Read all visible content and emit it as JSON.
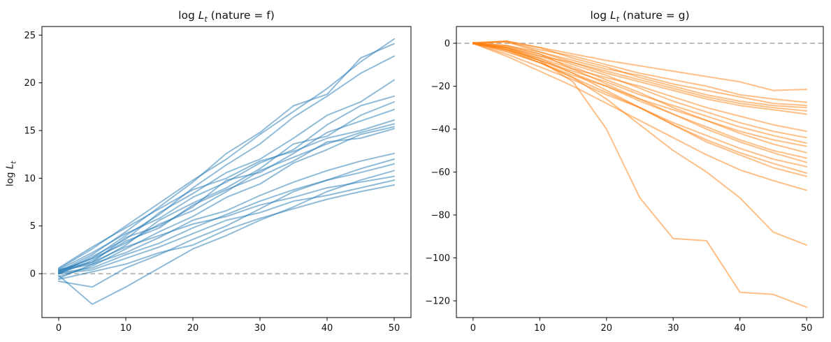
{
  "figure": {
    "background": "#ffffff",
    "axis_color": "#000000",
    "tick_label_color": "#111111",
    "zero_line_color": "#bdbdbd"
  },
  "chart_data": [
    {
      "type": "line",
      "title": "log L_t (nature = f)",
      "title_parts": {
        "pre": "log ",
        "var": "L",
        "sub": "t",
        "post": " (nature = f)"
      },
      "ylabel": "log L_t",
      "ylabel_parts": {
        "pre": "log ",
        "var": "L",
        "sub": "t"
      },
      "color": "#1f77b4",
      "opacity": 0.5,
      "line_width": 2,
      "grid": false,
      "legend": "none",
      "x_step": 5,
      "xlim": [
        -2.5,
        52.5
      ],
      "ylim": [
        -4.6,
        25.9
      ],
      "xticks": [
        {
          "v": 0,
          "label": "0"
        },
        {
          "v": 10,
          "label": "10"
        },
        {
          "v": 20,
          "label": "20"
        },
        {
          "v": 30,
          "label": "30"
        },
        {
          "v": 40,
          "label": "40"
        },
        {
          "v": 50,
          "label": "50"
        }
      ],
      "yticks": [
        {
          "v": 0,
          "label": "0"
        },
        {
          "v": 5,
          "label": "5"
        },
        {
          "v": 10,
          "label": "10"
        },
        {
          "v": 15,
          "label": "15"
        },
        {
          "v": 20,
          "label": "20"
        },
        {
          "v": 25,
          "label": "25"
        }
      ],
      "zero_line": {
        "y": 0,
        "style": "dashed"
      },
      "series": [
        [
          0.5,
          2.6,
          5.0,
          7.4,
          9.8,
          12.0,
          14.6,
          17.0,
          19.4,
          22.2,
          24.6
        ],
        [
          0.2,
          2.0,
          4.4,
          7.0,
          9.6,
          12.6,
          14.8,
          17.6,
          18.8,
          22.6,
          24.1
        ],
        [
          0.3,
          1.6,
          4.0,
          6.2,
          9.0,
          11.4,
          13.6,
          16.4,
          18.6,
          21.0,
          22.8
        ],
        [
          0.0,
          1.8,
          3.6,
          6.4,
          8.4,
          10.6,
          12.0,
          14.2,
          16.6,
          18.0,
          20.3
        ],
        [
          0.4,
          2.2,
          4.2,
          5.8,
          8.0,
          9.6,
          11.6,
          13.0,
          15.6,
          17.6,
          18.6
        ],
        [
          -0.5,
          1.0,
          3.0,
          5.6,
          7.4,
          9.0,
          11.0,
          13.6,
          14.4,
          16.6,
          18.0
        ],
        [
          0.1,
          1.2,
          3.8,
          5.0,
          7.0,
          9.8,
          10.6,
          12.6,
          14.8,
          16.0,
          17.2
        ],
        [
          0.6,
          2.8,
          4.8,
          6.8,
          8.8,
          10.0,
          11.8,
          12.8,
          14.2,
          15.0,
          16.1
        ],
        [
          0.2,
          1.6,
          3.2,
          5.2,
          6.6,
          8.6,
          10.8,
          12.2,
          13.6,
          14.8,
          15.7
        ],
        [
          -0.3,
          0.8,
          2.6,
          4.4,
          6.0,
          8.0,
          9.4,
          11.6,
          13.0,
          14.6,
          15.4
        ],
        [
          0.0,
          1.4,
          3.4,
          4.8,
          7.2,
          8.8,
          10.2,
          11.8,
          13.8,
          14.2,
          15.2
        ],
        [
          0.3,
          1.0,
          2.2,
          3.8,
          5.6,
          6.6,
          8.2,
          9.6,
          10.8,
          11.8,
          12.6
        ],
        [
          -0.8,
          -1.4,
          0.6,
          2.0,
          3.6,
          5.0,
          6.8,
          8.6,
          9.8,
          11.0,
          12.0
        ],
        [
          0.1,
          0.6,
          2.0,
          3.2,
          4.8,
          6.2,
          7.6,
          8.8,
          9.8,
          10.6,
          11.5
        ],
        [
          -0.2,
          -3.2,
          -1.4,
          0.6,
          2.6,
          4.0,
          5.6,
          7.0,
          8.6,
          9.8,
          10.8
        ],
        [
          0.4,
          1.2,
          2.8,
          4.0,
          5.2,
          6.0,
          7.2,
          8.0,
          9.0,
          9.6,
          10.2
        ],
        [
          0.0,
          0.4,
          1.6,
          2.8,
          4.2,
          5.6,
          6.4,
          7.6,
          8.2,
          9.0,
          9.8
        ],
        [
          -0.6,
          0.2,
          1.0,
          2.2,
          3.0,
          4.6,
          5.8,
          6.8,
          7.8,
          8.6,
          9.3
        ]
      ]
    },
    {
      "type": "line",
      "title": "log L_t (nature = g)",
      "title_parts": {
        "pre": "log ",
        "var": "L",
        "sub": "t",
        "post": " (nature = g)"
      },
      "ylabel": "",
      "color": "#ff7f0e",
      "opacity": 0.5,
      "line_width": 2,
      "grid": false,
      "legend": "none",
      "x_step": 5,
      "xlim": [
        -2.5,
        52.5
      ],
      "ylim": [
        -127.8,
        7.8
      ],
      "xticks": [
        {
          "v": 0,
          "label": "0"
        },
        {
          "v": 10,
          "label": "10"
        },
        {
          "v": 20,
          "label": "20"
        },
        {
          "v": 30,
          "label": "30"
        },
        {
          "v": 40,
          "label": "40"
        },
        {
          "v": 50,
          "label": "50"
        }
      ],
      "yticks": [
        {
          "v": 0,
          "label": "0"
        },
        {
          "v": -20,
          "label": "−20"
        },
        {
          "v": -40,
          "label": "−40"
        },
        {
          "v": -60,
          "label": "−60"
        },
        {
          "v": -80,
          "label": "−80"
        },
        {
          "v": -100,
          "label": "−100"
        },
        {
          "v": -120,
          "label": "−120"
        }
      ],
      "zero_line": {
        "y": 0,
        "style": "dashed"
      },
      "series": [
        [
          0.2,
          1.0,
          -2.0,
          -5.0,
          -8.0,
          -10.5,
          -13.0,
          -15.5,
          -18.0,
          -22.0,
          -21.5
        ],
        [
          0.0,
          0.5,
          -3.0,
          -6.0,
          -10.0,
          -14.0,
          -17.0,
          -20.0,
          -24.0,
          -26.0,
          -27.5
        ],
        [
          0.1,
          -1.0,
          -4.0,
          -8.0,
          -12.0,
          -15.0,
          -19.0,
          -22.0,
          -25.0,
          -28.0,
          -29.0
        ],
        [
          -0.2,
          1.0,
          -2.0,
          -7.0,
          -11.0,
          -16.0,
          -20.0,
          -24.0,
          -27.0,
          -29.0,
          -30.0
        ],
        [
          0.0,
          -2.0,
          -6.0,
          -9.0,
          -13.0,
          -17.0,
          -21.0,
          -25.0,
          -28.0,
          -30.0,
          -31.5
        ],
        [
          0.3,
          0.8,
          -4.0,
          -9.0,
          -14.0,
          -18.0,
          -22.0,
          -26.0,
          -29.0,
          -31.0,
          -33.0
        ],
        [
          0.0,
          -3.0,
          -7.0,
          -12.0,
          -16.0,
          -20.0,
          -25.0,
          -30.0,
          -34.0,
          -38.0,
          -41.0
        ],
        [
          -0.1,
          -1.5,
          -5.0,
          -10.0,
          -15.0,
          -21.0,
          -27.0,
          -32.0,
          -37.0,
          -41.0,
          -44.0
        ],
        [
          0.2,
          -2.5,
          -8.0,
          -13.0,
          -18.0,
          -24.0,
          -29.0,
          -34.0,
          -39.0,
          -43.0,
          -46.5
        ],
        [
          0.0,
          -4.0,
          -9.0,
          -15.0,
          -20.0,
          -26.0,
          -31.0,
          -36.0,
          -41.0,
          -45.0,
          -48.0
        ],
        [
          -0.3,
          -2.0,
          -6.0,
          -11.0,
          -17.0,
          -23.0,
          -30.0,
          -36.0,
          -42.0,
          -47.0,
          -51.0
        ],
        [
          0.1,
          -3.0,
          -8.0,
          -14.0,
          -20.0,
          -27.0,
          -33.0,
          -39.0,
          -45.0,
          -50.0,
          -53.5
        ],
        [
          0.0,
          -1.0,
          -5.0,
          -12.0,
          -19.0,
          -26.0,
          -33.0,
          -40.0,
          -46.0,
          -51.0,
          -55.5
        ],
        [
          -0.2,
          -5.0,
          -11.0,
          -17.0,
          -24.0,
          -30.0,
          -37.0,
          -43.0,
          -49.0,
          -54.0,
          -57.5
        ],
        [
          0.0,
          -3.5,
          -9.0,
          -16.0,
          -23.0,
          -30.0,
          -38.0,
          -45.0,
          -51.0,
          -56.0,
          -60.5
        ],
        [
          0.2,
          -2.0,
          -7.0,
          -14.0,
          -22.0,
          -30.0,
          -38.0,
          -46.0,
          -52.0,
          -58.0,
          -62.0
        ],
        [
          0.0,
          -6.0,
          -13.0,
          -20.0,
          -28.0,
          -36.0,
          -44.0,
          -52.0,
          -59.0,
          -64.0,
          -68.5
        ],
        [
          0.0,
          -3.0,
          -9.0,
          -16.0,
          -26.0,
          -38.0,
          -50.0,
          -60.0,
          -72.0,
          -88.0,
          -94.0
        ],
        [
          0.0,
          -2.0,
          -8.0,
          -18.0,
          -40.0,
          -72.0,
          -91.0,
          -92.0,
          -116.0,
          -117.0,
          -123.0
        ]
      ]
    }
  ]
}
